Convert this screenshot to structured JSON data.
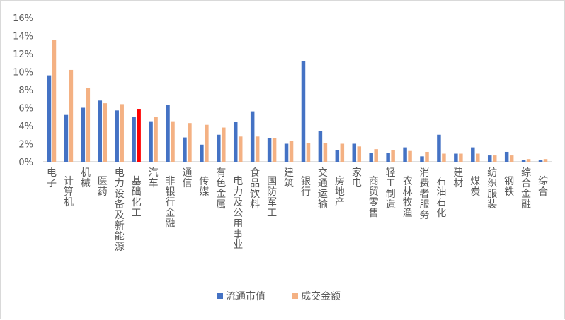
{
  "chart_data": {
    "type": "bar",
    "categories": [
      "电子",
      "计算机",
      "机械",
      "医药",
      "电力设备及新能源",
      "基础化工",
      "汽车",
      "非银行金融",
      "通信",
      "传媒",
      "有色金属",
      "电力及公用事业",
      "食品饮料",
      "国防军工",
      "建筑",
      "银行",
      "交通运输",
      "房地产",
      "家电",
      "商贸零售",
      "轻工制造",
      "农林牧渔",
      "消费者服务",
      "石油石化",
      "建材",
      "煤炭",
      "纺织服装",
      "钢铁",
      "综合金融",
      "综合"
    ],
    "series": [
      {
        "name": "流通市值",
        "color": "#4472c4",
        "values": [
          9.6,
          5.2,
          6.0,
          6.8,
          5.7,
          5.0,
          4.5,
          6.3,
          2.7,
          1.9,
          3.0,
          4.4,
          5.6,
          2.6,
          2.0,
          11.2,
          3.4,
          1.3,
          2.0,
          1.0,
          1.0,
          1.6,
          0.6,
          3.0,
          0.9,
          1.6,
          0.7,
          1.1,
          0.2,
          0.2
        ]
      },
      {
        "name": "成交金额",
        "color": "#f4b183",
        "values": [
          13.5,
          10.2,
          8.2,
          6.5,
          6.4,
          5.8,
          5.0,
          4.5,
          4.3,
          4.1,
          3.8,
          2.8,
          2.8,
          2.6,
          2.3,
          2.1,
          2.1,
          2.0,
          1.7,
          1.4,
          1.3,
          1.2,
          1.1,
          0.9,
          0.9,
          0.9,
          0.7,
          0.7,
          0.3,
          0.3
        ]
      }
    ],
    "highlight": {
      "category_index": 5,
      "series_index": 1,
      "color": "#ff0000"
    },
    "yticks": [
      "0%",
      "2%",
      "4%",
      "6%",
      "8%",
      "10%",
      "12%",
      "14%",
      "16%"
    ],
    "ylim": [
      0,
      16
    ],
    "grid": false,
    "legend_position": "bottom"
  }
}
